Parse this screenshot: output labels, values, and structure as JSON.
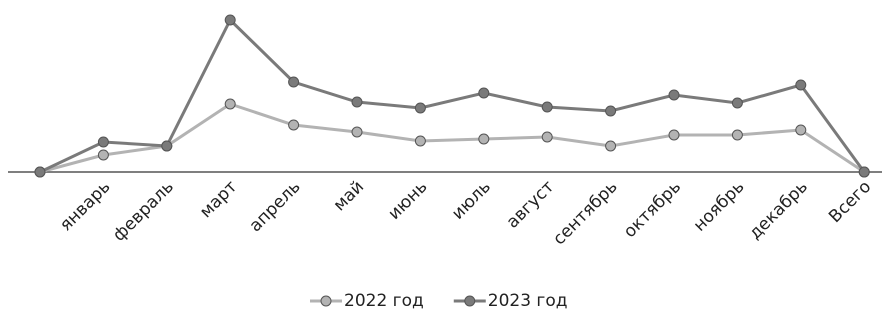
{
  "chart_data": {
    "type": "line",
    "categories": [
      null,
      "январь",
      "февраль",
      "март",
      "апрель",
      "май",
      "июнь",
      "июль",
      "август",
      "сентябрь",
      "октябрь",
      "ноябрь",
      "декабрь",
      "Всего"
    ],
    "series": [
      {
        "name": "2022 год",
        "color": "#b3b3b3",
        "values": [
          0,
          17,
          26,
          68,
          47,
          40,
          31,
          33,
          35,
          26,
          37,
          37,
          42,
          0
        ]
      },
      {
        "name": "2023 год",
        "color": "#7a7a7a",
        "values": [
          0,
          30,
          26,
          152,
          90,
          70,
          64,
          79,
          65,
          61,
          77,
          69,
          87,
          0
        ]
      }
    ],
    "ylim": [
      0,
      160
    ],
    "legend": "bottom"
  }
}
